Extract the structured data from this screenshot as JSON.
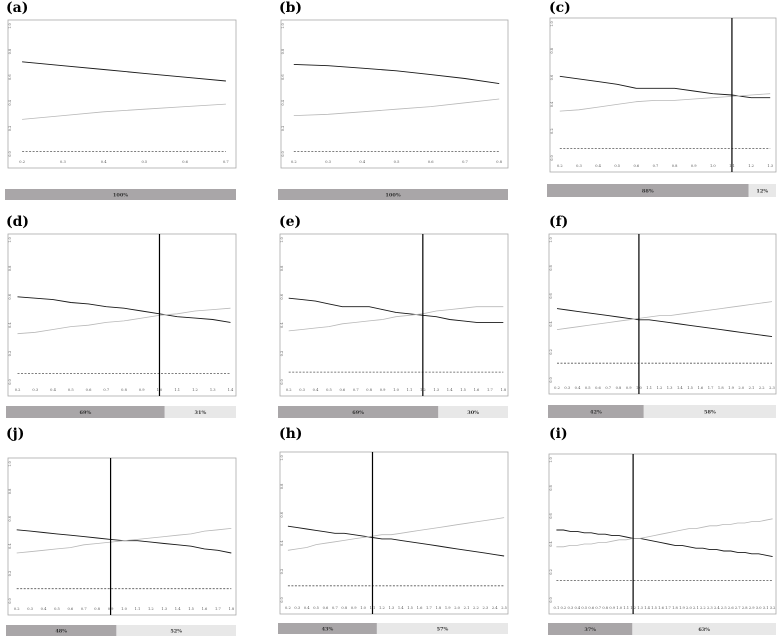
{
  "colors": {
    "dark_line": "#1a1a1a",
    "light_line": "#b8b8b8",
    "dashed_line": "#555555",
    "bar_dark": "#a9a6a8",
    "bar_light": "#e8e8e8",
    "axis": "#aaaaaa"
  },
  "chart_data": [
    {
      "id": "a",
      "label": "(a)",
      "type": "line",
      "x": [
        0.2,
        0.3,
        0.4,
        0.5,
        0.6,
        0.7
      ],
      "xticks": [
        "0.2",
        "0.3",
        "0.4",
        "0.5",
        "0.6",
        "0.7"
      ],
      "xlim": [
        0.18,
        0.72
      ],
      "yticks": [
        "0.0",
        "0.2",
        "0.4",
        "0.6",
        "0.8",
        "1.0"
      ],
      "ylim": [
        0,
        1.0
      ],
      "series": [
        {
          "style": "dark",
          "values": [
            0.72,
            0.69,
            0.66,
            0.63,
            0.6,
            0.57
          ]
        },
        {
          "style": "light",
          "values": [
            0.27,
            0.3,
            0.33,
            0.35,
            0.37,
            0.39
          ]
        },
        {
          "style": "dashed",
          "values": [
            0.02,
            0.02,
            0.02,
            0.02,
            0.02,
            0.02
          ]
        }
      ],
      "vline": null,
      "bar": [
        {
          "pct": 100,
          "label": "100%",
          "tone": "dark"
        }
      ]
    },
    {
      "id": "b",
      "label": "(b)",
      "type": "line",
      "x": [
        0.2,
        0.3,
        0.4,
        0.5,
        0.6,
        0.7,
        0.8
      ],
      "xticks": [
        "0.2",
        "0.3",
        "0.4",
        "0.5",
        "0.6",
        "0.7",
        "0.8"
      ],
      "xlim": [
        0.18,
        0.82
      ],
      "yticks": [
        "0.0",
        "0.2",
        "0.4",
        "0.6",
        "0.8",
        "1.0"
      ],
      "ylim": [
        0,
        1.0
      ],
      "series": [
        {
          "style": "dark",
          "values": [
            0.7,
            0.69,
            0.67,
            0.65,
            0.62,
            0.59,
            0.55
          ]
        },
        {
          "style": "light",
          "values": [
            0.3,
            0.31,
            0.33,
            0.35,
            0.37,
            0.4,
            0.43
          ]
        },
        {
          "style": "dashed",
          "values": [
            0.02,
            0.02,
            0.02,
            0.02,
            0.02,
            0.02,
            0.02
          ]
        }
      ],
      "vline": null,
      "bar": [
        {
          "pct": 100,
          "label": "100%",
          "tone": "dark"
        }
      ]
    },
    {
      "id": "c",
      "label": "(c)",
      "type": "line",
      "x": [
        0.2,
        0.3,
        0.4,
        0.5,
        0.6,
        0.7,
        0.8,
        0.9,
        1.0,
        1.1,
        1.2,
        1.3
      ],
      "xticks": [
        "0.2",
        "0.3",
        "0.4",
        "0.5",
        "0.6",
        "0.7",
        "0.8",
        "0.9",
        "1.0",
        "1.1",
        "1.2",
        "1.3"
      ],
      "xlim": [
        0.18,
        1.32
      ],
      "yticks": [
        "0.0",
        "0.2",
        "0.4",
        "0.6",
        "0.8",
        "1.0"
      ],
      "ylim": [
        0,
        1.0
      ],
      "series": [
        {
          "style": "dark",
          "values": [
            0.61,
            0.59,
            0.57,
            0.55,
            0.52,
            0.52,
            0.52,
            0.5,
            0.48,
            0.47,
            0.45,
            0.45
          ]
        },
        {
          "style": "light",
          "values": [
            0.35,
            0.36,
            0.38,
            0.4,
            0.42,
            0.43,
            0.43,
            0.44,
            0.45,
            0.46,
            0.47,
            0.48
          ]
        },
        {
          "style": "dashed",
          "values": [
            0.07,
            0.07,
            0.07,
            0.07,
            0.07,
            0.07,
            0.07,
            0.07,
            0.07,
            0.07,
            0.07,
            0.07
          ]
        }
      ],
      "vline": 1.1,
      "bar": [
        {
          "pct": 88,
          "label": "88%",
          "tone": "dark"
        },
        {
          "pct": 12,
          "label": "12%",
          "tone": "light"
        }
      ]
    },
    {
      "id": "d",
      "label": "(d)",
      "type": "line",
      "x": [
        0.2,
        0.3,
        0.4,
        0.5,
        0.6,
        0.7,
        0.8,
        0.9,
        1.0,
        1.1,
        1.2,
        1.3,
        1.4
      ],
      "xticks": [
        "0.2",
        "0.3",
        "0.4",
        "0.5",
        "0.6",
        "0.7",
        "0.8",
        "0.9",
        "1.0",
        "1.1",
        "1.2",
        "1.3",
        "1.4"
      ],
      "xlim": [
        0.18,
        1.42
      ],
      "yticks": [
        "0.0",
        "0.2",
        "0.4",
        "0.6",
        "0.8",
        "1.0"
      ],
      "ylim": [
        0,
        1.0
      ],
      "series": [
        {
          "style": "dark",
          "values": [
            0.6,
            0.59,
            0.58,
            0.56,
            0.55,
            0.53,
            0.52,
            0.5,
            0.48,
            0.46,
            0.45,
            0.44,
            0.42
          ]
        },
        {
          "style": "light",
          "values": [
            0.34,
            0.35,
            0.37,
            0.39,
            0.4,
            0.42,
            0.43,
            0.45,
            0.47,
            0.48,
            0.5,
            0.51,
            0.52
          ]
        },
        {
          "style": "dashed",
          "values": [
            0.06,
            0.06,
            0.06,
            0.06,
            0.06,
            0.06,
            0.06,
            0.06,
            0.06,
            0.06,
            0.06,
            0.06,
            0.06
          ]
        }
      ],
      "vline": 1.0,
      "bar": [
        {
          "pct": 69,
          "label": "69%",
          "tone": "dark"
        },
        {
          "pct": 31,
          "label": "31%",
          "tone": "light"
        }
      ]
    },
    {
      "id": "e",
      "label": "(e)",
      "type": "line",
      "x": [
        0.2,
        0.3,
        0.4,
        0.5,
        0.6,
        0.7,
        0.8,
        0.9,
        1.0,
        1.1,
        1.2,
        1.3,
        1.4,
        1.5,
        1.6,
        1.7,
        1.8
      ],
      "xticks": [
        "0.2",
        "0.3",
        "0.4",
        "0.5",
        "0.6",
        "0.7",
        "0.8",
        "0.9",
        "1.0",
        "1.1",
        "1.2",
        "1.3",
        "1.4",
        "1.5",
        "1.6",
        "1.7",
        "1.8"
      ],
      "xlim": [
        0.18,
        1.82
      ],
      "yticks": [
        "0.0",
        "0.2",
        "0.4",
        "0.6",
        "0.8",
        "1.0"
      ],
      "ylim": [
        0,
        1.0
      ],
      "series": [
        {
          "style": "dark",
          "values": [
            0.59,
            0.58,
            0.57,
            0.55,
            0.53,
            0.53,
            0.53,
            0.51,
            0.49,
            0.48,
            0.47,
            0.46,
            0.44,
            0.43,
            0.42,
            0.42,
            0.42
          ]
        },
        {
          "style": "light",
          "values": [
            0.36,
            0.37,
            0.38,
            0.39,
            0.41,
            0.42,
            0.43,
            0.44,
            0.46,
            0.47,
            0.48,
            0.5,
            0.51,
            0.52,
            0.53,
            0.53,
            0.53
          ]
        },
        {
          "style": "dashed",
          "values": [
            0.07,
            0.07,
            0.07,
            0.07,
            0.07,
            0.07,
            0.07,
            0.07,
            0.07,
            0.07,
            0.07,
            0.07,
            0.07,
            0.07,
            0.07,
            0.07,
            0.07
          ]
        }
      ],
      "vline": 1.2,
      "bar": [
        {
          "pct": 69,
          "label": "69%",
          "tone": "dark"
        },
        {
          "pct": 30,
          "label": "30%",
          "tone": "light"
        }
      ]
    },
    {
      "id": "f",
      "label": "(f)",
      "type": "line",
      "x": [
        0.2,
        0.3,
        0.4,
        0.5,
        0.6,
        0.7,
        0.8,
        0.9,
        1.0,
        1.1,
        1.2,
        1.3,
        1.4,
        1.5,
        1.6,
        1.7,
        1.8,
        1.9,
        2.0,
        2.1,
        2.2,
        2.3
      ],
      "xticks": [
        "0.2",
        "0.3",
        "0.4",
        "0.5",
        "0.6",
        "0.7",
        "0.8",
        "0.9",
        "1.0",
        "1.1",
        "1.2",
        "1.3",
        "1.4",
        "1.5",
        "1.6",
        "1.7",
        "1.8",
        "1.9",
        "2.0",
        "2.1",
        "2.2",
        "2.3"
      ],
      "xlim": [
        0.18,
        2.32
      ],
      "yticks": [
        "0.0",
        "0.2",
        "0.4",
        "0.6",
        "0.8",
        "1.0"
      ],
      "ylim": [
        0,
        1.0
      ],
      "series": [
        {
          "style": "dark",
          "values": [
            0.51,
            0.5,
            0.49,
            0.48,
            0.47,
            0.46,
            0.45,
            0.44,
            0.43,
            0.43,
            0.42,
            0.41,
            0.4,
            0.39,
            0.38,
            0.37,
            0.36,
            0.35,
            0.34,
            0.33,
            0.32,
            0.31
          ]
        },
        {
          "style": "light",
          "values": [
            0.36,
            0.37,
            0.38,
            0.39,
            0.4,
            0.41,
            0.42,
            0.43,
            0.44,
            0.45,
            0.46,
            0.46,
            0.47,
            0.48,
            0.49,
            0.5,
            0.51,
            0.52,
            0.53,
            0.54,
            0.55,
            0.56
          ]
        },
        {
          "style": "dashed",
          "values": [
            0.12,
            0.12,
            0.12,
            0.12,
            0.12,
            0.12,
            0.12,
            0.12,
            0.12,
            0.12,
            0.12,
            0.12,
            0.12,
            0.12,
            0.12,
            0.12,
            0.12,
            0.12,
            0.12,
            0.12,
            0.12,
            0.12
          ]
        }
      ],
      "vline": 1.0,
      "bar": [
        {
          "pct": 42,
          "label": "42%",
          "tone": "dark"
        },
        {
          "pct": 58,
          "label": "58%",
          "tone": "light"
        }
      ]
    },
    {
      "id": "j",
      "label": "(j)",
      "type": "line",
      "x": [
        0.2,
        0.3,
        0.4,
        0.5,
        0.6,
        0.7,
        0.8,
        0.9,
        1.0,
        1.1,
        1.2,
        1.3,
        1.4,
        1.5,
        1.6,
        1.7,
        1.8
      ],
      "xticks": [
        "0.2",
        "0.3",
        "0.4",
        "0.5",
        "0.6",
        "0.7",
        "0.8",
        "0.9",
        "1.0",
        "1.1",
        "1.2",
        "1.3",
        "1.4",
        "1.5",
        "1.6",
        "1.7",
        "1.8"
      ],
      "xlim": [
        0.18,
        1.82
      ],
      "yticks": [
        "0.0",
        "0.2",
        "0.4",
        "0.6",
        "0.8",
        "1.0"
      ],
      "ylim": [
        0,
        1.0
      ],
      "series": [
        {
          "style": "dark",
          "values": [
            0.52,
            0.51,
            0.5,
            0.49,
            0.48,
            0.47,
            0.46,
            0.45,
            0.44,
            0.44,
            0.43,
            0.42,
            0.41,
            0.4,
            0.38,
            0.37,
            0.35
          ]
        },
        {
          "style": "light",
          "values": [
            0.35,
            0.36,
            0.37,
            0.38,
            0.39,
            0.41,
            0.42,
            0.43,
            0.44,
            0.45,
            0.46,
            0.47,
            0.48,
            0.49,
            0.51,
            0.52,
            0.53
          ]
        },
        {
          "style": "dashed",
          "values": [
            0.09,
            0.09,
            0.09,
            0.09,
            0.09,
            0.09,
            0.09,
            0.09,
            0.09,
            0.09,
            0.09,
            0.09,
            0.09,
            0.09,
            0.09,
            0.09,
            0.09
          ]
        }
      ],
      "vline": 0.9,
      "bar": [
        {
          "pct": 48,
          "label": "48%",
          "tone": "dark"
        },
        {
          "pct": 52,
          "label": "52%",
          "tone": "light"
        }
      ]
    },
    {
      "id": "h",
      "label": "(h)",
      "type": "line",
      "x": [
        0.2,
        0.3,
        0.4,
        0.5,
        0.6,
        0.7,
        0.8,
        0.9,
        1.0,
        1.1,
        1.2,
        1.3,
        1.4,
        1.5,
        1.6,
        1.7,
        1.8,
        1.9,
        2.0,
        2.1,
        2.2,
        2.3,
        2.4,
        2.5
      ],
      "xticks": [
        "0.2",
        "0.3",
        "0.4",
        "0.5",
        "0.6",
        "0.7",
        "0.8",
        "0.9",
        "1.0",
        "1.1",
        "1.2",
        "1.3",
        "1.4",
        "1.5",
        "1.6",
        "1.7",
        "1.8",
        "1.9",
        "2.0",
        "2.1",
        "2.2",
        "2.3",
        "2.4",
        "2.5"
      ],
      "xlim": [
        0.18,
        2.52
      ],
      "yticks": [
        "0.0",
        "0.2",
        "0.4",
        "0.6",
        "0.8",
        "1.0"
      ],
      "ylim": [
        0,
        1.0
      ],
      "series": [
        {
          "style": "dark",
          "values": [
            0.52,
            0.51,
            0.5,
            0.49,
            0.48,
            0.47,
            0.47,
            0.46,
            0.45,
            0.44,
            0.43,
            0.43,
            0.42,
            0.41,
            0.4,
            0.39,
            0.38,
            0.37,
            0.36,
            0.35,
            0.34,
            0.33,
            0.32,
            0.31
          ]
        },
        {
          "style": "light",
          "values": [
            0.35,
            0.36,
            0.37,
            0.39,
            0.4,
            0.41,
            0.42,
            0.43,
            0.44,
            0.45,
            0.46,
            0.46,
            0.47,
            0.48,
            0.49,
            0.5,
            0.51,
            0.52,
            0.53,
            0.54,
            0.55,
            0.56,
            0.57,
            0.58
          ]
        },
        {
          "style": "dashed",
          "values": [
            0.1,
            0.1,
            0.1,
            0.1,
            0.1,
            0.1,
            0.1,
            0.1,
            0.1,
            0.1,
            0.1,
            0.1,
            0.1,
            0.1,
            0.1,
            0.1,
            0.1,
            0.1,
            0.1,
            0.1,
            0.1,
            0.1,
            0.1,
            0.1
          ]
        }
      ],
      "vline": 1.1,
      "bar": [
        {
          "pct": 43,
          "label": "43%",
          "tone": "dark"
        },
        {
          "pct": 57,
          "label": "57%",
          "tone": "light"
        }
      ]
    },
    {
      "id": "i",
      "label": "(i)",
      "type": "line",
      "x": [
        0.1,
        0.2,
        0.3,
        0.4,
        0.5,
        0.6,
        0.7,
        0.8,
        0.9,
        1.0,
        1.1,
        1.2,
        1.3,
        1.4,
        1.5,
        1.6,
        1.7,
        1.8,
        1.9,
        2.0,
        2.1,
        2.2,
        2.3,
        2.4,
        2.5,
        2.6,
        2.7,
        2.8,
        2.9,
        3.0,
        3.1,
        3.2
      ],
      "xticks": [
        "0.1",
        "0.2",
        "0.3",
        "0.4",
        "0.5",
        "0.6",
        "0.7",
        "0.8",
        "0.9",
        "1.0",
        "1.1",
        "1.2",
        "1.3",
        "1.4",
        "1.5",
        "1.6",
        "1.7",
        "1.8",
        "1.9",
        "2.0",
        "2.1",
        "2.2",
        "2.3",
        "2.4",
        "2.5",
        "2.6",
        "2.7",
        "2.8",
        "2.9",
        "3.0",
        "3.1",
        "3.2"
      ],
      "xlim": [
        0.08,
        3.22
      ],
      "yticks": [
        "0.0",
        "0.2",
        "0.4",
        "0.6",
        "0.8",
        "1.0"
      ],
      "ylim": [
        0,
        1.0
      ],
      "series": [
        {
          "style": "dark",
          "values": [
            0.5,
            0.5,
            0.49,
            0.49,
            0.48,
            0.48,
            0.47,
            0.47,
            0.46,
            0.46,
            0.45,
            0.44,
            0.44,
            0.43,
            0.42,
            0.41,
            0.4,
            0.39,
            0.39,
            0.38,
            0.37,
            0.37,
            0.36,
            0.36,
            0.35,
            0.35,
            0.34,
            0.34,
            0.33,
            0.33,
            0.32,
            0.31
          ]
        },
        {
          "style": "light",
          "values": [
            0.38,
            0.38,
            0.39,
            0.39,
            0.4,
            0.4,
            0.41,
            0.41,
            0.42,
            0.43,
            0.43,
            0.44,
            0.44,
            0.45,
            0.46,
            0.47,
            0.48,
            0.49,
            0.5,
            0.51,
            0.51,
            0.52,
            0.53,
            0.53,
            0.54,
            0.54,
            0.55,
            0.55,
            0.56,
            0.56,
            0.57,
            0.58
          ]
        },
        {
          "style": "dashed",
          "values": [
            0.14,
            0.14,
            0.14,
            0.14,
            0.14,
            0.14,
            0.14,
            0.14,
            0.14,
            0.14,
            0.14,
            0.14,
            0.14,
            0.14,
            0.14,
            0.14,
            0.14,
            0.14,
            0.14,
            0.14,
            0.14,
            0.14,
            0.14,
            0.14,
            0.14,
            0.14,
            0.14,
            0.14,
            0.14,
            0.14,
            0.14,
            0.14
          ]
        }
      ],
      "vline": 1.2,
      "bar": [
        {
          "pct": 37,
          "label": "37%",
          "tone": "dark"
        },
        {
          "pct": 63,
          "label": "63%",
          "tone": "light"
        }
      ]
    }
  ]
}
